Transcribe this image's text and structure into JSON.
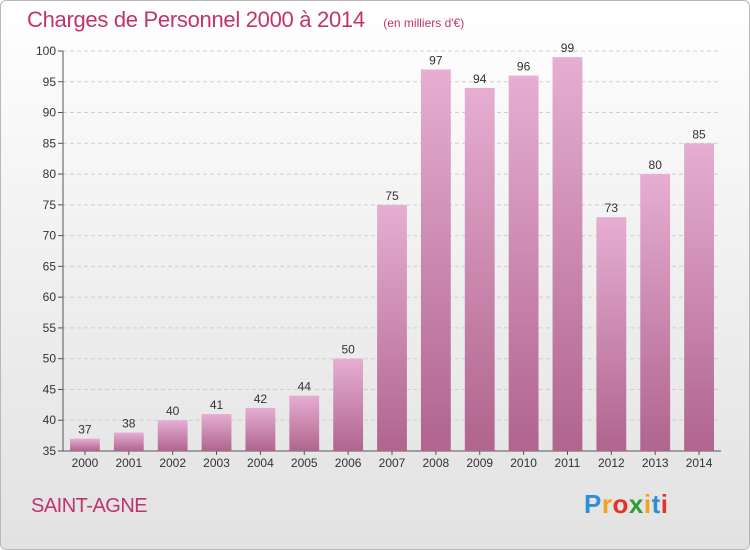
{
  "title": "Charges de Personnel 2000 à 2014",
  "subtitle": "(en milliers d'€)",
  "commune": "SAINT-AGNE",
  "logo": {
    "letters": [
      "P",
      "r",
      "o",
      "x",
      "i",
      "t",
      "i"
    ],
    "colors": [
      "#2f8ed6",
      "#f3a21c",
      "#e4332a",
      "#2e9d3a",
      "#f3a21c",
      "#2f8ed6",
      "#e4332a"
    ]
  },
  "colors": {
    "bar_top": "#e6aed2",
    "bar_bottom": "#b0648e",
    "accent": "#c0346b"
  },
  "chart_data": {
    "type": "bar",
    "title": "Charges de Personnel 2000 à 2014",
    "subtitle": "(en milliers d'€)",
    "categories": [
      "2000",
      "2001",
      "2002",
      "2003",
      "2004",
      "2005",
      "2006",
      "2007",
      "2008",
      "2009",
      "2010",
      "2011",
      "2012",
      "2013",
      "2014"
    ],
    "values": [
      37,
      38,
      40,
      41,
      42,
      44,
      50,
      75,
      97,
      94,
      96,
      99,
      73,
      80,
      85
    ],
    "ylim": [
      35,
      100
    ],
    "yticks": [
      35,
      40,
      45,
      50,
      55,
      60,
      65,
      70,
      75,
      80,
      85,
      90,
      95,
      100
    ],
    "grid": true,
    "xlabel": "",
    "ylabel": ""
  }
}
